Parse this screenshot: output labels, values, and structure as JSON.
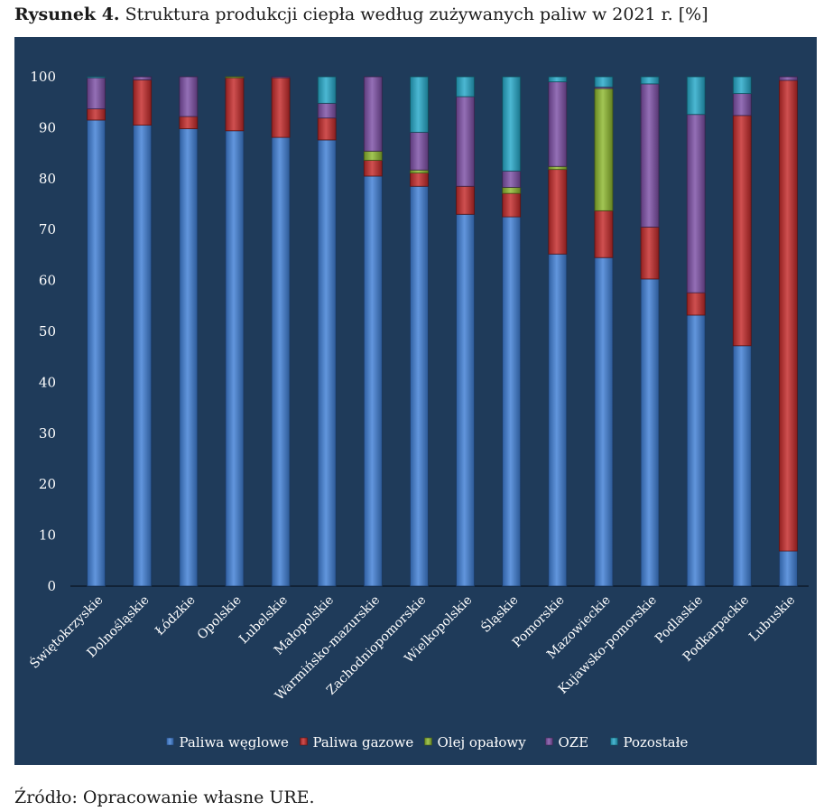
{
  "figure": {
    "label": "Rysunek 4.",
    "title": "Struktura produkcji ciepła według zużywanych paliw w 2021 r. [%]",
    "source": "Źródło: Opracowanie własne URE."
  },
  "chart_data": {
    "type": "bar",
    "stacked": true,
    "categories": [
      "Świętokrzyskie",
      "Dolnośląskie",
      "Łódzkie",
      "Opolskie",
      "Lubelskie",
      "Małopolskie",
      "Warmińsko-mazurskie",
      "Zachodniopomorskie",
      "Wielkopolskie",
      "Śląskie",
      "Pomorskie",
      "Mazowieckie",
      "Kujawsko-pomorskie",
      "Podlaskie",
      "Podkarpackie",
      "Lubuskie"
    ],
    "series": [
      {
        "name": "Paliwa węglowe",
        "color": "#3f7fd6",
        "values": [
          91.5,
          90.5,
          89.8,
          89.4,
          88.1,
          87.6,
          80.5,
          78.5,
          73.0,
          72.5,
          65.2,
          64.5,
          60.3,
          53.2,
          47.2,
          6.9
        ]
      },
      {
        "name": "Paliwa gazowe",
        "color": "#c42a2a",
        "values": [
          2.2,
          8.9,
          2.4,
          10.4,
          11.7,
          4.3,
          3.1,
          2.6,
          5.5,
          4.6,
          16.6,
          9.2,
          10.2,
          4.4,
          45.2,
          92.4
        ]
      },
      {
        "name": "Olej opałowy",
        "color": "#8db82e",
        "values": [
          0.0,
          0.0,
          0.0,
          0.2,
          0.0,
          0.0,
          1.8,
          0.6,
          0.0,
          1.2,
          0.6,
          24.0,
          0.0,
          0.0,
          0.0,
          0.0
        ]
      },
      {
        "name": "OZE",
        "color": "#7d4fa6",
        "values": [
          6.1,
          0.6,
          7.8,
          0.0,
          0.2,
          2.9,
          14.6,
          7.4,
          17.6,
          3.2,
          16.6,
          0.3,
          28.1,
          35.0,
          4.3,
          0.7
        ]
      },
      {
        "name": "Pozostałe",
        "color": "#25a9c9",
        "values": [
          0.2,
          0.0,
          0.0,
          0.0,
          0.0,
          5.2,
          0.0,
          10.9,
          3.9,
          18.5,
          1.0,
          2.0,
          1.4,
          7.4,
          3.3,
          0.0
        ]
      }
    ],
    "ylim": [
      0,
      100
    ],
    "yticks": [
      0,
      10,
      20,
      30,
      40,
      50,
      60,
      70,
      80,
      90,
      100
    ],
    "grid": false,
    "legend_position": "bottom"
  }
}
